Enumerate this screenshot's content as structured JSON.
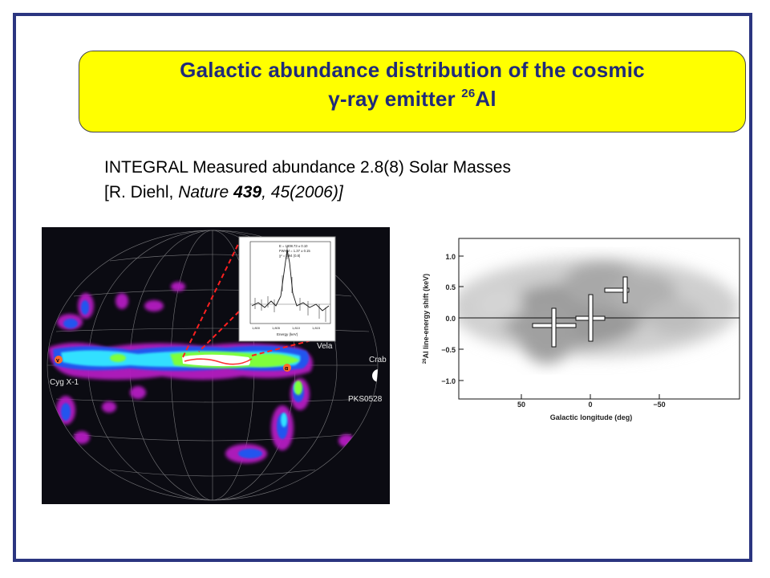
{
  "title": {
    "line1": "Galactic abundance distribution of the cosmic",
    "line2_prefix": "γ-ray emitter ",
    "line2_sup": "26",
    "line2_suffix": "Al"
  },
  "body": {
    "line1": "INTEGRAL  Measured abundance 2.8(8) Solar Masses",
    "ref_open": "[R. Diehl, ",
    "ref_journal": "Nature",
    "ref_space": " ",
    "ref_volume": "439",
    "ref_rest": ", 45(2006)]"
  },
  "sky_map": {
    "labels": {
      "cyg": "Cyg X-1",
      "vela": "Vela",
      "crab": "Crab",
      "pks": "PKS0528",
      "marker_v": "v",
      "marker_a": "α"
    },
    "inset": {
      "text1": "E = 1808.73 ± 0.10",
      "text2": "FWHM = 1.37 ± 0.15",
      "text3": "χ² = 0.94 (0.8)",
      "xlabel": "Energy (keV)",
      "xticks": [
        "1,800",
        "1,805",
        "1,810",
        "1,815"
      ]
    },
    "colors": {
      "background": "#0b0b12",
      "grid": "#cfcfcf",
      "emission_low": "#b51ac2",
      "emission_mid": "#2255ee",
      "emission_high": "#33e0ff",
      "emission_peak": "#7fff3a",
      "emission_core": "#ff3030",
      "dashed_line": "#ff2020"
    }
  },
  "shift_plot": {
    "yaxis_label_sup": "26",
    "yaxis_label": "Al line-energy shift (keV)",
    "xaxis_label": "Galactic longitude (deg)",
    "yticks": [
      "1.0",
      "0.5",
      "0.0",
      "−0.5",
      "−1.0"
    ],
    "xticks": [
      "50",
      "0",
      "−50"
    ]
  }
}
